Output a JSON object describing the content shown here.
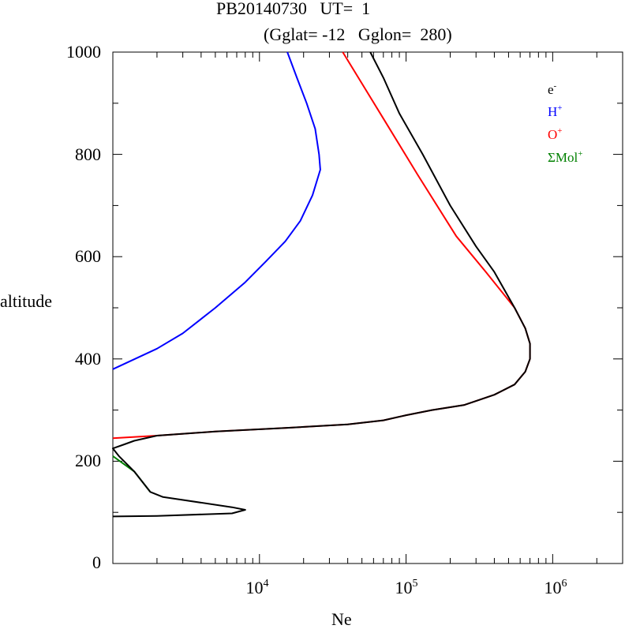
{
  "title": {
    "line1": "PB20140730   UT=  1",
    "line2": "(Gglat= -12   Gglon=  280)"
  },
  "chart_data": {
    "type": "line",
    "xlabel": "Ne",
    "ylabel": "altitude",
    "xscale": "log",
    "xlim": [
      1000,
      3000000
    ],
    "ylim": [
      0,
      1000
    ],
    "yticks": [
      0,
      200,
      400,
      600,
      800,
      1000
    ],
    "xticks": [
      {
        "value": 10000,
        "base": "10",
        "exp": "4"
      },
      {
        "value": 100000,
        "base": "10",
        "exp": "5"
      },
      {
        "value": 1000000,
        "base": "10",
        "exp": "6"
      }
    ],
    "legend": {
      "placement": "top-right",
      "entries": [
        {
          "base": "e",
          "sup": "-",
          "color": "#000000"
        },
        {
          "base": "H",
          "sup": "+",
          "color": "#0000ff"
        },
        {
          "base": "O",
          "sup": "+",
          "color": "#ff0000"
        },
        {
          "base": "ΣMol",
          "sup": "+",
          "color": "#008000"
        }
      ]
    },
    "series": [
      {
        "key": "e",
        "color": "#000000",
        "points": [
          [
            1000,
            92
          ],
          [
            2000,
            93
          ],
          [
            6500,
            98
          ],
          [
            8000,
            105
          ],
          [
            6500,
            110
          ],
          [
            2200,
            130
          ],
          [
            1800,
            140
          ],
          [
            1400,
            180
          ],
          [
            1100,
            210
          ],
          [
            1000,
            225
          ],
          [
            1200,
            233
          ],
          [
            1400,
            240
          ],
          [
            2000,
            250
          ],
          [
            5000,
            258
          ],
          [
            15000,
            265
          ],
          [
            40000,
            272
          ],
          [
            70000,
            280
          ],
          [
            100000,
            290
          ],
          [
            150000,
            300
          ],
          [
            250000,
            310
          ],
          [
            400000,
            330
          ],
          [
            550000,
            350
          ],
          [
            650000,
            375
          ],
          [
            700000,
            400
          ],
          [
            700000,
            430
          ],
          [
            650000,
            460
          ],
          [
            550000,
            500
          ],
          [
            400000,
            570
          ],
          [
            300000,
            620
          ],
          [
            200000,
            700
          ],
          [
            130000,
            800
          ],
          [
            90000,
            880
          ],
          [
            70000,
            950
          ],
          [
            57000,
            1000
          ]
        ]
      },
      {
        "key": "O",
        "color": "#ff0000",
        "points": [
          [
            1000,
            245
          ],
          [
            2000,
            250
          ],
          [
            5000,
            258
          ],
          [
            15000,
            265
          ],
          [
            40000,
            272
          ],
          [
            70000,
            280
          ],
          [
            100000,
            290
          ],
          [
            150000,
            300
          ],
          [
            250000,
            310
          ],
          [
            400000,
            330
          ],
          [
            550000,
            350
          ],
          [
            650000,
            375
          ],
          [
            700000,
            400
          ],
          [
            700000,
            430
          ],
          [
            650000,
            460
          ],
          [
            550000,
            500
          ],
          [
            350000,
            570
          ],
          [
            220000,
            640
          ],
          [
            120000,
            760
          ],
          [
            70000,
            870
          ],
          [
            37000,
            1000
          ]
        ]
      },
      {
        "key": "H",
        "color": "#0000ff",
        "points": [
          [
            1000,
            380
          ],
          [
            2000,
            420
          ],
          [
            3000,
            450
          ],
          [
            5000,
            500
          ],
          [
            8000,
            550
          ],
          [
            11000,
            590
          ],
          [
            15000,
            630
          ],
          [
            19000,
            670
          ],
          [
            23000,
            720
          ],
          [
            26000,
            770
          ],
          [
            25500,
            800
          ],
          [
            24000,
            850
          ],
          [
            21000,
            900
          ],
          [
            18000,
            950
          ],
          [
            15500,
            1000
          ]
        ]
      },
      {
        "key": "Mol",
        "color": "#008000",
        "points": [
          [
            1000,
            210
          ],
          [
            1400,
            180
          ],
          [
            1800,
            140
          ]
        ]
      }
    ]
  }
}
